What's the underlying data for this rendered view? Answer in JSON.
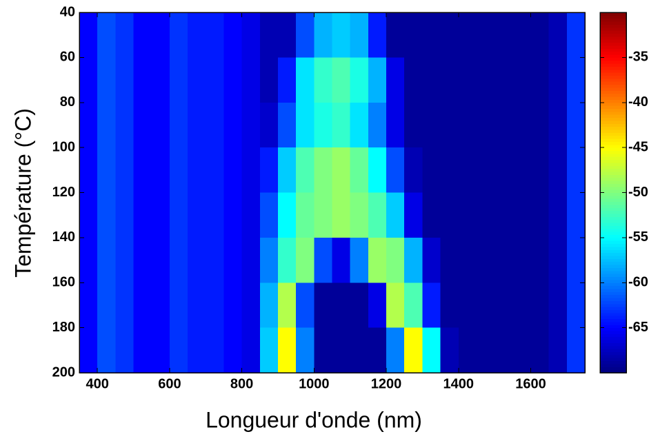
{
  "chart_data": {
    "type": "heatmap",
    "xlabel": "Longueur d'onde (nm)",
    "ylabel": "Température (°C)",
    "xbins": [
      350,
      400,
      450,
      500,
      550,
      600,
      650,
      700,
      750,
      800,
      850,
      900,
      950,
      1000,
      1050,
      1100,
      1150,
      1200,
      1250,
      1300,
      1350,
      1400,
      1450,
      1500,
      1550,
      1600,
      1650,
      1700,
      1750
    ],
    "ybins": [
      40,
      60,
      80,
      100,
      120,
      140,
      160,
      180,
      200
    ],
    "values": [
      [
        -65,
        -62,
        -63,
        -65,
        -65,
        -63,
        -64,
        -64,
        -65,
        -66,
        -68,
        -68,
        -62,
        -58,
        -57,
        -58,
        -64,
        -69,
        -69,
        -69,
        -69,
        -69,
        -69,
        -69,
        -69,
        -69,
        -68,
        -63
      ],
      [
        -65,
        -62,
        -63,
        -65,
        -65,
        -63,
        -64,
        -64,
        -65,
        -66,
        -68,
        -64,
        -56,
        -53,
        -52,
        -54,
        -58,
        -66,
        -69,
        -69,
        -69,
        -69,
        -69,
        -69,
        -69,
        -69,
        -68,
        -63
      ],
      [
        -65,
        -62,
        -63,
        -65,
        -65,
        -63,
        -64,
        -64,
        -65,
        -66,
        -67,
        -62,
        -56,
        -54,
        -53,
        -56,
        -60,
        -66,
        -69,
        -69,
        -69,
        -69,
        -69,
        -69,
        -69,
        -69,
        -68,
        -63
      ],
      [
        -65,
        -62,
        -63,
        -65,
        -65,
        -63,
        -64,
        -64,
        -65,
        -66,
        -64,
        -57,
        -52,
        -50,
        -49,
        -51,
        -55,
        -62,
        -68,
        -69,
        -69,
        -69,
        -69,
        -69,
        -69,
        -69,
        -68,
        -63
      ],
      [
        -65,
        -62,
        -63,
        -65,
        -65,
        -63,
        -64,
        -64,
        -65,
        -66,
        -62,
        -55,
        -51,
        -50,
        -49,
        -50,
        -52,
        -57,
        -66,
        -69,
        -69,
        -69,
        -69,
        -69,
        -69,
        -69,
        -68,
        -63
      ],
      [
        -65,
        -62,
        -63,
        -65,
        -65,
        -63,
        -64,
        -64,
        -65,
        -66,
        -60,
        -53,
        -50,
        -62,
        -66,
        -60,
        -49,
        -50,
        -58,
        -67,
        -69,
        -69,
        -69,
        -69,
        -69,
        -69,
        -68,
        -63
      ],
      [
        -65,
        -62,
        -63,
        -65,
        -65,
        -63,
        -64,
        -64,
        -65,
        -66,
        -58,
        -48,
        -62,
        -69,
        -69,
        -69,
        -66,
        -48,
        -52,
        -64,
        -69,
        -69,
        -69,
        -69,
        -69,
        -69,
        -68,
        -63
      ],
      [
        -65,
        -62,
        -63,
        -65,
        -65,
        -63,
        -64,
        -64,
        -65,
        -66,
        -57,
        -45,
        -60,
        -69,
        -69,
        -69,
        -69,
        -60,
        -45,
        -55,
        -68,
        -69,
        -69,
        -69,
        -69,
        -69,
        -68,
        -63
      ]
    ],
    "xlim": [
      350,
      1750
    ],
    "ylim": [
      40,
      200
    ],
    "y_reversed": true,
    "xticks": [
      400,
      600,
      800,
      1000,
      1200,
      1400,
      1600
    ],
    "yticks": [
      40,
      60,
      80,
      100,
      120,
      140,
      160,
      180,
      200
    ],
    "colormap": "jet",
    "clim": [
      -70,
      -30
    ],
    "cticks": [
      -65,
      -60,
      -55,
      -50,
      -45,
      -40,
      -35
    ]
  }
}
